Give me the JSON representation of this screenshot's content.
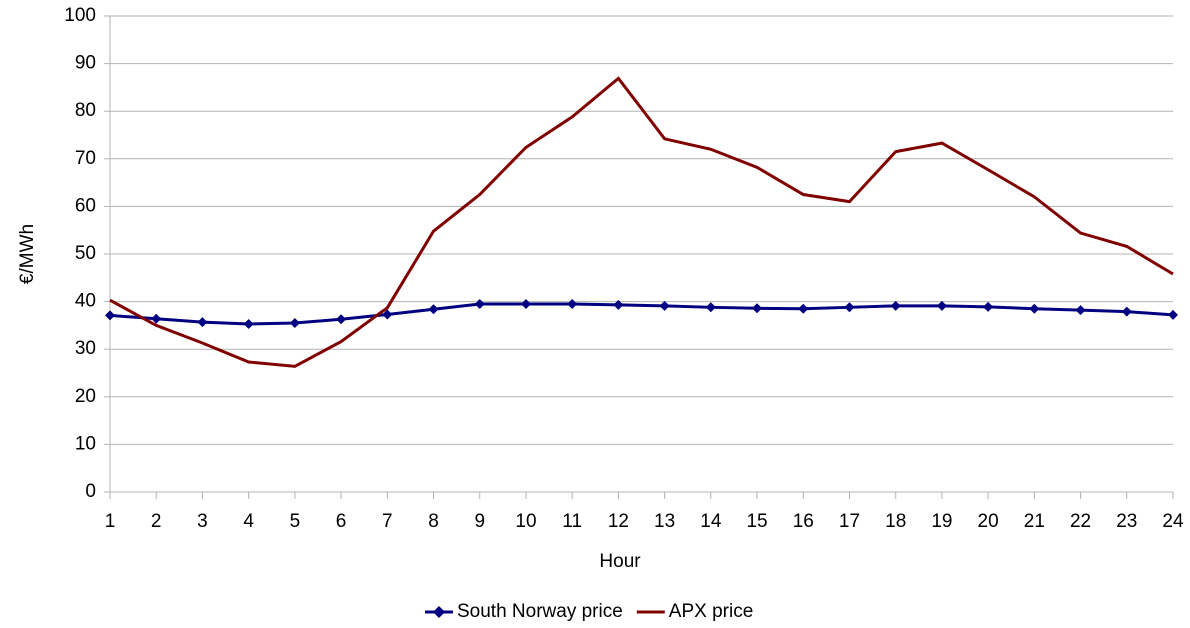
{
  "chart_data": {
    "type": "line",
    "x_label": "Hour",
    "y_label": "€/MWh",
    "x": [
      1,
      2,
      3,
      4,
      5,
      6,
      7,
      8,
      9,
      10,
      11,
      12,
      13,
      14,
      15,
      16,
      17,
      18,
      19,
      20,
      21,
      22,
      23,
      24
    ],
    "xlim": [
      1,
      24
    ],
    "ylim": [
      0,
      100
    ],
    "yticks": [
      0,
      10,
      20,
      30,
      40,
      50,
      60,
      70,
      80,
      90,
      100
    ],
    "grid": true,
    "legend": "bottom",
    "series": [
      {
        "name": "South Norway price",
        "color": "#000080",
        "marker": "diamond",
        "values": [
          37.1,
          36.4,
          35.7,
          35.3,
          35.5,
          36.3,
          37.3,
          38.4,
          39.5,
          39.5,
          39.5,
          39.3,
          39.1,
          38.8,
          38.6,
          38.5,
          38.8,
          39.1,
          39.1,
          38.9,
          38.5,
          38.2,
          37.9,
          37.2
        ]
      },
      {
        "name": "APX price",
        "color": "#800000",
        "values": [
          40.3,
          35.0,
          31.3,
          27.3,
          26.4,
          31.6,
          38.7,
          54.8,
          62.5,
          72.4,
          78.8,
          86.9,
          74.2,
          72.0,
          68.2,
          62.5,
          61.0,
          71.5,
          73.3,
          67.7,
          62.0,
          54.4,
          51.6,
          45.8
        ]
      }
    ]
  }
}
